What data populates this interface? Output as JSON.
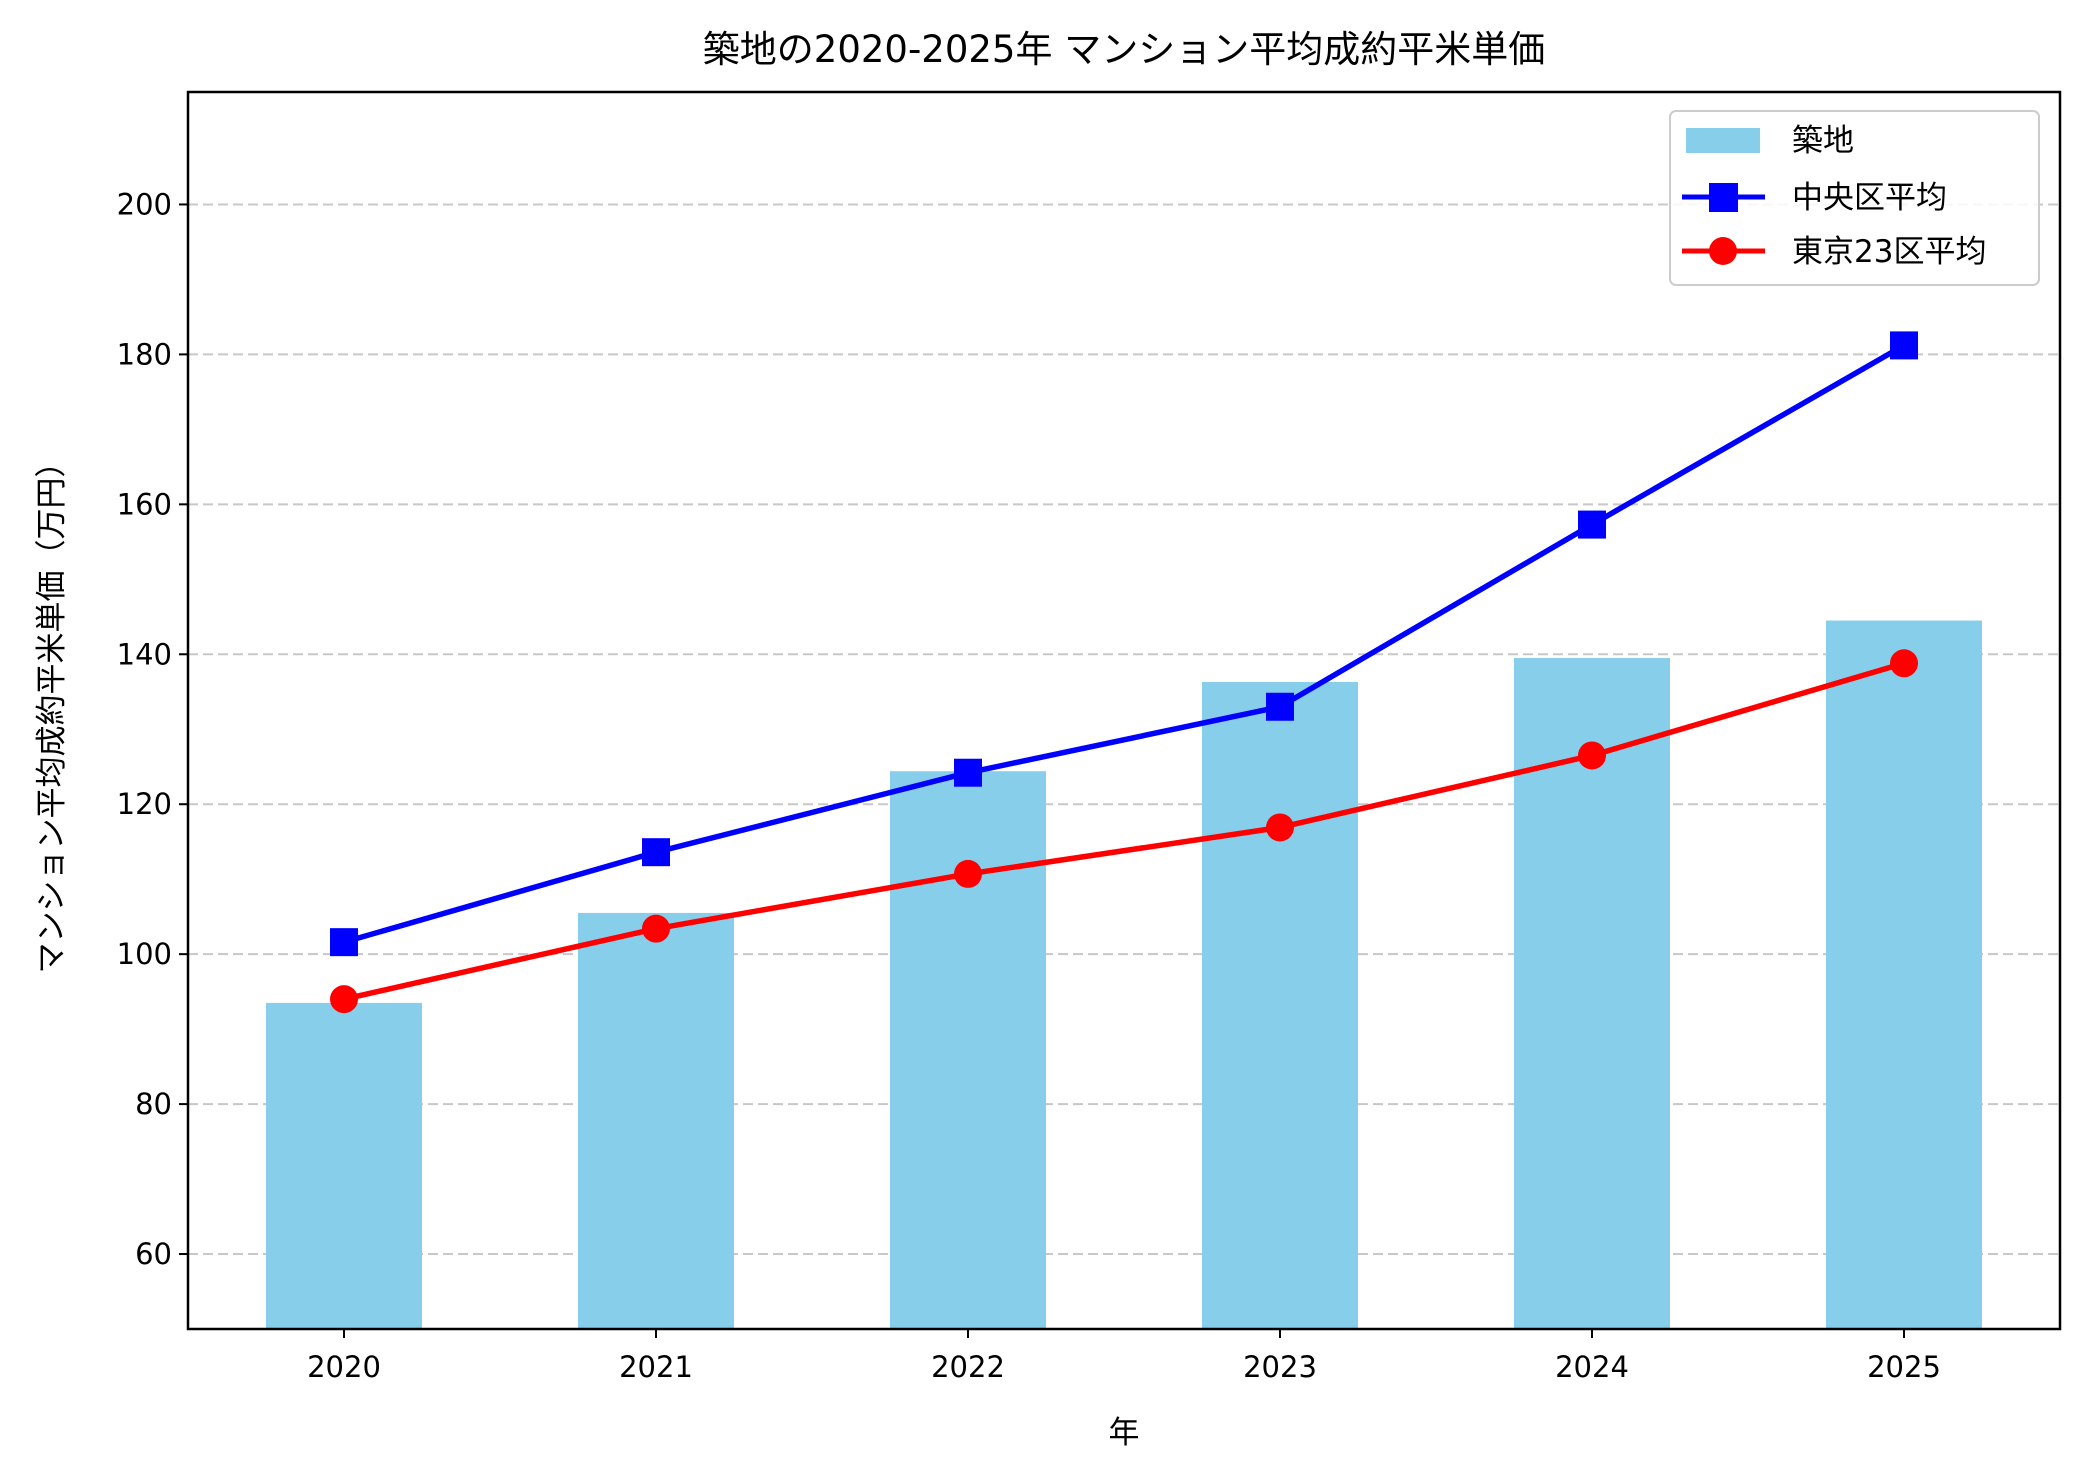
{
  "chart_data": {
    "type": "bar+line",
    "title": "築地の2020-2025年 マンション平均成約平米単価",
    "xlabel": "年",
    "ylabel": "マンション平均成約平米単価（万円）",
    "categories": [
      "2020",
      "2021",
      "2022",
      "2023",
      "2024",
      "2025"
    ],
    "ylim": [
      50,
      215
    ],
    "yticks": [
      60,
      80,
      100,
      120,
      140,
      160,
      180,
      200
    ],
    "grid": "y-dashed",
    "legend_position": "top-right",
    "series": [
      {
        "name": "築地",
        "kind": "bar",
        "color": "#87CEEB",
        "values": [
          93.5,
          105.5,
          124.4,
          136.3,
          139.5,
          144.5
        ]
      },
      {
        "name": "中央区平均",
        "kind": "line",
        "marker": "square",
        "color": "#0000FF",
        "values": [
          101.6,
          113.6,
          124.2,
          133.0,
          157.3,
          181.2
        ]
      },
      {
        "name": "東京23区平均",
        "kind": "line",
        "marker": "circle",
        "color": "#FF0000",
        "values": [
          94.0,
          103.4,
          110.7,
          116.9,
          126.5,
          138.8
        ]
      }
    ]
  }
}
